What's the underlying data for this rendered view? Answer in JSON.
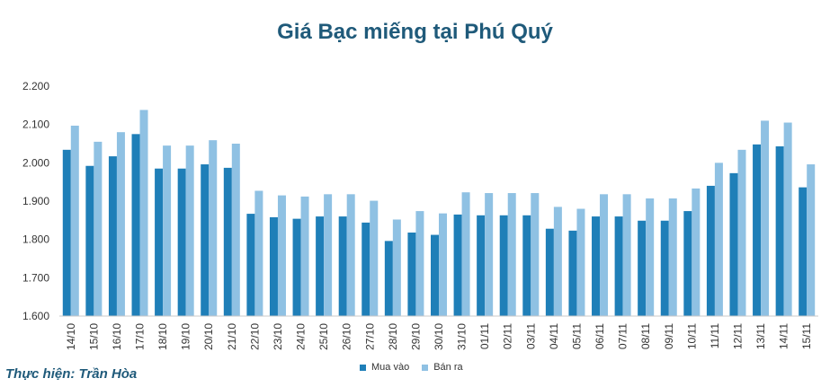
{
  "chart_data": {
    "type": "bar",
    "title": "Giá Bạc miếng tại Phú Quý",
    "categories": [
      "14/10",
      "15/10",
      "16/10",
      "17/10",
      "18/10",
      "19/10",
      "20/10",
      "21/10",
      "22/10",
      "23/10",
      "24/10",
      "25/10",
      "26/10",
      "27/10",
      "28/10",
      "29/10",
      "30/10",
      "31/10",
      "01/11",
      "02/11",
      "03/11",
      "04/11",
      "05/11",
      "06/11",
      "07/11",
      "08/11",
      "09/11",
      "10/11",
      "11/11",
      "12/11",
      "13/11",
      "14/11",
      "15/11"
    ],
    "series": [
      {
        "name": "Mua vào",
        "color": "#1f7fb8",
        "values": [
          2034,
          1992,
          2017,
          2075,
          1985,
          1985,
          1996,
          1987,
          1867,
          1858,
          1854,
          1860,
          1860,
          1844,
          1796,
          1818,
          1812,
          1865,
          1863,
          1863,
          1863,
          1828,
          1823,
          1860,
          1860,
          1849,
          1849,
          1874,
          1940,
          1973,
          2048,
          2043,
          1936
        ]
      },
      {
        "name": "Bán ra",
        "color": "#8fc1e3",
        "values": [
          2097,
          2055,
          2080,
          2138,
          2045,
          2045,
          2059,
          2050,
          1927,
          1915,
          1912,
          1918,
          1918,
          1901,
          1852,
          1874,
          1868,
          1923,
          1921,
          1921,
          1921,
          1885,
          1880,
          1918,
          1918,
          1907,
          1907,
          1933,
          2000,
          2034,
          2110,
          2105,
          1996
        ]
      }
    ],
    "ylim": [
      1600,
      2200
    ],
    "yticks": [
      "1.600",
      "1.700",
      "1.800",
      "1.900",
      "2.000",
      "2.100",
      "2.200"
    ],
    "ytick_values": [
      1600,
      1700,
      1800,
      1900,
      2000,
      2100,
      2200
    ],
    "grid": false,
    "legend_position": "bottom"
  },
  "credit": "Thực hiện: Trần Hòa"
}
